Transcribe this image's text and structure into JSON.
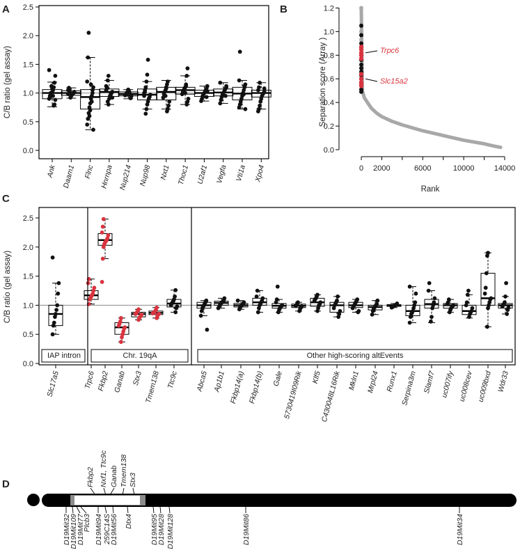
{
  "panels": {
    "A": {
      "label": "A",
      "ylabel": "C/B ratio (gel assay)",
      "ylim": [
        0,
        2.5
      ],
      "yticks": [
        "0.0",
        "0.5",
        "1.0",
        "1.5",
        "2.0",
        "2.5"
      ],
      "refline": 1.0,
      "categories": [
        "Ank",
        "Daam1",
        "Flnc",
        "Hnrnpa",
        "Nup214",
        "Nup98",
        "Nxt1",
        "Thoc1",
        "U2af1",
        "Vegfa",
        "Vti1a",
        "Xpo4"
      ],
      "boxes": [
        {
          "q1": 0.9,
          "median": 1.0,
          "q3": 1.06,
          "whisker_low": 0.76,
          "whisker_high": 1.19
        },
        {
          "q1": 0.96,
          "median": 1.0,
          "q3": 1.04,
          "whisker_low": 0.91,
          "whisker_high": 1.09
        },
        {
          "q1": 0.72,
          "median": 0.93,
          "q3": 1.06,
          "whisker_low": 0.36,
          "whisker_high": 1.62
        },
        {
          "q1": 0.94,
          "median": 1.02,
          "q3": 1.07,
          "whisker_low": 0.8,
          "whisker_high": 1.22
        },
        {
          "q1": 0.95,
          "median": 0.98,
          "q3": 1.02,
          "whisker_low": 0.9,
          "whisker_high": 1.06
        },
        {
          "q1": 0.88,
          "median": 0.97,
          "q3": 1.07,
          "whisker_low": 0.72,
          "whisker_high": 1.2
        },
        {
          "q1": 0.88,
          "median": 1.02,
          "q3": 1.1,
          "whisker_low": 0.72,
          "whisker_high": 1.22
        },
        {
          "q1": 0.98,
          "median": 1.05,
          "q3": 1.1,
          "whisker_low": 0.8,
          "whisker_high": 1.3
        },
        {
          "q1": 0.94,
          "median": 1.0,
          "q3": 1.05,
          "whisker_low": 0.86,
          "whisker_high": 1.12
        },
        {
          "q1": 0.95,
          "median": 1.01,
          "q3": 1.07,
          "whisker_low": 0.82,
          "whisker_high": 1.18
        },
        {
          "q1": 0.88,
          "median": 0.99,
          "q3": 1.1,
          "whisker_low": 0.72,
          "whisker_high": 1.22
        },
        {
          "q1": 0.93,
          "median": 1.0,
          "q3": 1.05,
          "whisker_low": 0.72,
          "whisker_high": 1.18
        }
      ],
      "points": [
        [
          1.4,
          1.3,
          1.18,
          1.1,
          1.05,
          1.02,
          1.0,
          0.98,
          0.95,
          0.9,
          0.88,
          0.8,
          0.78,
          0.95,
          1.08,
          1.12,
          1.0,
          0.92
        ],
        [
          1.09,
          1.05,
          1.02,
          1.0,
          0.99,
          0.97,
          0.95,
          0.92,
          1.03,
          1.06,
          0.98,
          1.01
        ],
        [
          2.05,
          1.62,
          1.2,
          1.1,
          1.05,
          0.95,
          0.9,
          0.82,
          0.75,
          0.65,
          0.55,
          0.45,
          0.36,
          1.0,
          0.85,
          1.15,
          0.7,
          0.6
        ],
        [
          1.3,
          1.22,
          1.1,
          1.05,
          1.02,
          1.0,
          0.98,
          0.95,
          0.9,
          0.8,
          0.85,
          1.08,
          1.12,
          0.92
        ],
        [
          1.06,
          1.02,
          1.0,
          0.98,
          0.96,
          0.94,
          0.91,
          0.99,
          1.03,
          0.97
        ],
        [
          1.58,
          1.32,
          1.2,
          1.1,
          1.05,
          1.0,
          0.97,
          0.93,
          0.9,
          0.85,
          0.8,
          0.72,
          0.64,
          1.02,
          0.95
        ],
        [
          1.2,
          1.15,
          1.1,
          1.05,
          1.02,
          0.98,
          0.92,
          0.85,
          0.78,
          0.72,
          0.68,
          1.08,
          0.95
        ],
        [
          1.43,
          1.3,
          1.15,
          1.1,
          1.08,
          1.05,
          1.02,
          0.98,
          0.9,
          0.85,
          0.8,
          1.12,
          1.0
        ],
        [
          1.12,
          1.08,
          1.05,
          1.02,
          1.0,
          0.98,
          0.95,
          0.9,
          0.86,
          1.03,
          0.93
        ],
        [
          1.18,
          1.12,
          1.08,
          1.05,
          1.02,
          1.0,
          0.97,
          0.93,
          0.88,
          0.82,
          1.1,
          0.95
        ],
        [
          1.72,
          1.22,
          1.15,
          1.1,
          1.05,
          1.0,
          0.95,
          0.9,
          0.85,
          0.8,
          0.75,
          0.72,
          1.12,
          0.98
        ],
        [
          1.18,
          1.1,
          1.05,
          1.02,
          1.0,
          0.98,
          0.95,
          0.9,
          0.85,
          0.78,
          0.72,
          0.68,
          1.08
        ]
      ]
    },
    "B": {
      "label": "B",
      "ylabel": "Separation score (Array )",
      "xlabel": "Rank",
      "xlim": [
        0,
        14000
      ],
      "ylim": [
        0,
        1.25
      ],
      "xticks": [
        "0",
        "2000",
        "6000",
        "10000",
        "14000"
      ],
      "yticks": [
        "0.0",
        "0.2",
        "0.4",
        "0.6",
        "0.8",
        "1.0",
        "1.2"
      ],
      "annotations": [
        "Trpc6",
        "Slc15a2"
      ],
      "curve": [
        [
          0,
          1.2
        ],
        [
          100,
          0.5
        ],
        [
          300,
          0.44
        ],
        [
          600,
          0.4
        ],
        [
          1000,
          0.35
        ],
        [
          1500,
          0.31
        ],
        [
          2000,
          0.28
        ],
        [
          3000,
          0.24
        ],
        [
          4000,
          0.21
        ],
        [
          6000,
          0.16
        ],
        [
          8000,
          0.12
        ],
        [
          10000,
          0.08
        ],
        [
          12000,
          0.05
        ],
        [
          13000,
          0.03
        ],
        [
          13600,
          0.02
        ]
      ],
      "highlight_black": [
        1.05,
        0.97,
        0.9,
        0.8,
        0.76,
        0.72,
        0.69,
        0.66,
        0.63,
        0.6,
        0.57,
        0.51,
        0.49
      ],
      "highlight_red": [
        0.87,
        0.85,
        0.82,
        0.8,
        0.77,
        0.64,
        0.6,
        0.57,
        0.55,
        0.54
      ],
      "highlight_grey": [
        1.2,
        1.0,
        0.93
      ]
    },
    "C": {
      "label": "C",
      "ylabel": "C/B ratio (gel assay)",
      "ylim": [
        0,
        2.5
      ],
      "yticks": [
        "0.0",
        "0.5",
        "1.0",
        "1.5",
        "2.0",
        "2.5"
      ],
      "refline": 1.0,
      "groups": [
        "IAP intron",
        "Chr. 19qA",
        "Other high-scoring altEvents"
      ],
      "categories": [
        "Slc17a5",
        "Trpc6",
        "Fkbp2",
        "Ganab",
        "Stx3",
        "Tmem138",
        "Ttc9c",
        "Abca5",
        "Ap1b1",
        "Fkbp14(a)",
        "Fkbp14(b)",
        "Gale",
        "5730419I09Rik",
        "Klf5",
        "C430048L16Rik",
        "Mkln1",
        "Mrpl24",
        "Runx1",
        "Serpina3m",
        "Slamf7",
        "uc007ify",
        "uc008cev",
        "uc009bxd",
        "Wdr33"
      ],
      "point_colors": [
        "black",
        "red",
        "red",
        "red",
        "red",
        "red",
        "black",
        "black",
        "black",
        "black",
        "black",
        "black",
        "black",
        "black",
        "black",
        "black",
        "black",
        "black",
        "black",
        "black",
        "black",
        "black",
        "black",
        "black"
      ],
      "boxes": [
        {
          "q1": 0.65,
          "median": 0.85,
          "q3": 1.0,
          "whisker_low": 0.5,
          "whisker_high": 1.38
        },
        {
          "q1": 1.1,
          "median": 1.17,
          "q3": 1.25,
          "whisker_low": 1.02,
          "whisker_high": 1.45
        },
        {
          "q1": 2.03,
          "median": 2.12,
          "q3": 2.23,
          "whisker_low": 1.8,
          "whisker_high": 2.48
        },
        {
          "q1": 0.5,
          "median": 0.62,
          "q3": 0.7,
          "whisker_low": 0.37,
          "whisker_high": 0.78
        },
        {
          "q1": 0.8,
          "median": 0.85,
          "q3": 0.88,
          "whisker_low": 0.75,
          "whisker_high": 0.93
        },
        {
          "q1": 0.84,
          "median": 0.87,
          "q3": 0.9,
          "whisker_low": 0.78,
          "whisker_high": 0.96
        },
        {
          "q1": 0.97,
          "median": 1.03,
          "q3": 1.1,
          "whisker_low": 0.88,
          "whisker_high": 1.26
        },
        {
          "q1": 0.95,
          "median": 1.0,
          "q3": 1.05,
          "whisker_low": 0.82,
          "whisker_high": 1.08
        },
        {
          "q1": 1.0,
          "median": 1.04,
          "q3": 1.07,
          "whisker_low": 0.95,
          "whisker_high": 1.12
        },
        {
          "q1": 0.97,
          "median": 1.0,
          "q3": 1.03,
          "whisker_low": 0.93,
          "whisker_high": 1.08
        },
        {
          "q1": 1.0,
          "median": 1.05,
          "q3": 1.12,
          "whisker_low": 0.88,
          "whisker_high": 1.25
        },
        {
          "q1": 0.95,
          "median": 0.99,
          "q3": 1.03,
          "whisker_low": 0.88,
          "whisker_high": 1.1
        },
        {
          "q1": 0.96,
          "median": 0.99,
          "q3": 1.02,
          "whisker_low": 0.9,
          "whisker_high": 1.05
        },
        {
          "q1": 0.98,
          "median": 1.05,
          "q3": 1.12,
          "whisker_low": 0.9,
          "whisker_high": 1.18
        },
        {
          "q1": 0.88,
          "median": 1.0,
          "q3": 1.05,
          "whisker_low": 0.8,
          "whisker_high": 1.15
        },
        {
          "q1": 0.96,
          "median": 1.0,
          "q3": 1.05,
          "whisker_low": 0.88,
          "whisker_high": 1.1
        },
        {
          "q1": 0.92,
          "median": 0.97,
          "q3": 1.0,
          "whisker_low": 0.84,
          "whisker_high": 1.08
        },
        {
          "q1": 0.98,
          "median": 1.0,
          "q3": 1.01,
          "whisker_low": 0.96,
          "whisker_high": 1.03
        },
        {
          "q1": 0.82,
          "median": 0.9,
          "q3": 1.0,
          "whisker_low": 0.7,
          "whisker_high": 1.32
        },
        {
          "q1": 0.95,
          "median": 1.02,
          "q3": 1.1,
          "whisker_low": 0.7,
          "whisker_high": 1.25
        },
        {
          "q1": 0.95,
          "median": 1.0,
          "q3": 1.03,
          "whisker_low": 0.88,
          "whisker_high": 1.1
        },
        {
          "q1": 0.84,
          "median": 0.9,
          "q3": 1.0,
          "whisker_low": 0.78,
          "whisker_high": 1.18
        },
        {
          "q1": 1.0,
          "median": 1.12,
          "q3": 1.55,
          "whisker_low": 0.63,
          "whisker_high": 1.9
        },
        {
          "q1": 0.95,
          "median": 1.0,
          "q3": 1.03,
          "whisker_low": 0.85,
          "whisker_high": 1.15
        }
      ],
      "points": [
        [
          1.82,
          1.38,
          1.2,
          1.0,
          0.92,
          0.85,
          0.8,
          0.7,
          0.65,
          0.5
        ],
        [
          1.45,
          1.38,
          1.3,
          1.25,
          1.2,
          1.17,
          1.15,
          1.12,
          1.1,
          1.02
        ],
        [
          2.48,
          2.35,
          2.25,
          2.2,
          2.15,
          2.12,
          2.1,
          2.08,
          2.05,
          2.0,
          1.8,
          1.4
        ],
        [
          0.78,
          0.72,
          0.68,
          0.65,
          0.62,
          0.6,
          0.55,
          0.5,
          0.45,
          0.37
        ],
        [
          0.93,
          0.9,
          0.88,
          0.86,
          0.85,
          0.84,
          0.82,
          0.8,
          0.78,
          0.75
        ],
        [
          0.96,
          0.92,
          0.9,
          0.88,
          0.87,
          0.86,
          0.85,
          0.84,
          0.82,
          0.78
        ],
        [
          1.26,
          1.15,
          1.1,
          1.07,
          1.05,
          1.03,
          1.0,
          0.98,
          0.95,
          0.88
        ],
        [
          1.08,
          1.05,
          1.03,
          1.0,
          0.98,
          0.95,
          0.9,
          0.82,
          0.58
        ],
        [
          1.12,
          1.08,
          1.06,
          1.05,
          1.04,
          1.02,
          1.0,
          0.97,
          0.95
        ],
        [
          1.08,
          1.05,
          1.03,
          1.01,
          1.0,
          0.98,
          0.96,
          0.93
        ],
        [
          1.25,
          1.15,
          1.12,
          1.08,
          1.05,
          1.02,
          1.0,
          0.95,
          0.88
        ],
        [
          1.32,
          1.1,
          1.05,
          1.0,
          0.99,
          0.97,
          0.95,
          0.92,
          0.88
        ],
        [
          1.05,
          1.02,
          1.0,
          0.99,
          0.98,
          0.96,
          0.94,
          0.9
        ],
        [
          1.18,
          1.15,
          1.12,
          1.1,
          1.08,
          1.05,
          1.02,
          1.0,
          0.95,
          0.9
        ],
        [
          1.15,
          1.08,
          1.05,
          1.02,
          1.0,
          0.95,
          0.9,
          0.85,
          0.8
        ],
        [
          1.1,
          1.07,
          1.05,
          1.02,
          1.0,
          0.98,
          0.95,
          0.9,
          0.88
        ],
        [
          1.08,
          1.02,
          1.0,
          0.98,
          0.96,
          0.94,
          0.9,
          0.84
        ],
        [
          1.03,
          1.01,
          1.0,
          1.0,
          0.99,
          0.98,
          0.97,
          0.96
        ],
        [
          1.32,
          1.2,
          1.05,
          1.0,
          0.95,
          0.9,
          0.87,
          0.85,
          0.8,
          0.7
        ],
        [
          1.38,
          1.25,
          1.12,
          1.05,
          1.0,
          0.95,
          0.8,
          0.72
        ],
        [
          1.1,
          1.05,
          1.02,
          1.0,
          0.99,
          0.97,
          0.95,
          0.92,
          0.88
        ],
        [
          1.25,
          1.18,
          1.05,
          1.0,
          0.95,
          0.9,
          0.88,
          0.85,
          0.8
        ],
        [
          1.9,
          1.85,
          1.55,
          1.3,
          1.2,
          1.12,
          1.1,
          1.05,
          1.0,
          0.95,
          0.63
        ],
        [
          1.38,
          1.15,
          1.05,
          1.02,
          1.0,
          0.98,
          0.96,
          0.92,
          0.85
        ]
      ]
    },
    "D": {
      "label": "D",
      "genes_top": [
        "Fkbp2",
        "Nxf1, Ttc9c",
        "Ganab",
        "Tmem138",
        "Stx3"
      ],
      "markers_bottom": [
        "D19Mit32",
        "D19Mit109",
        "D19Mit77",
        "Plcb3",
        "D19Mit94",
        "259C14S",
        "D19Mit56",
        "Dtx4",
        "D19Mit95",
        "D19Mit28",
        "D19Mit128",
        "D19Mit86",
        "D19Mit34"
      ]
    }
  },
  "colors": {
    "black_point": "#111111",
    "red_point": "#d9343f",
    "grey_point": "#a8a8a8",
    "annotation_red": "#d9343f",
    "chromosome": "#000000",
    "region_fill": "#ffffff",
    "region_edge": "#8c8c8c"
  }
}
